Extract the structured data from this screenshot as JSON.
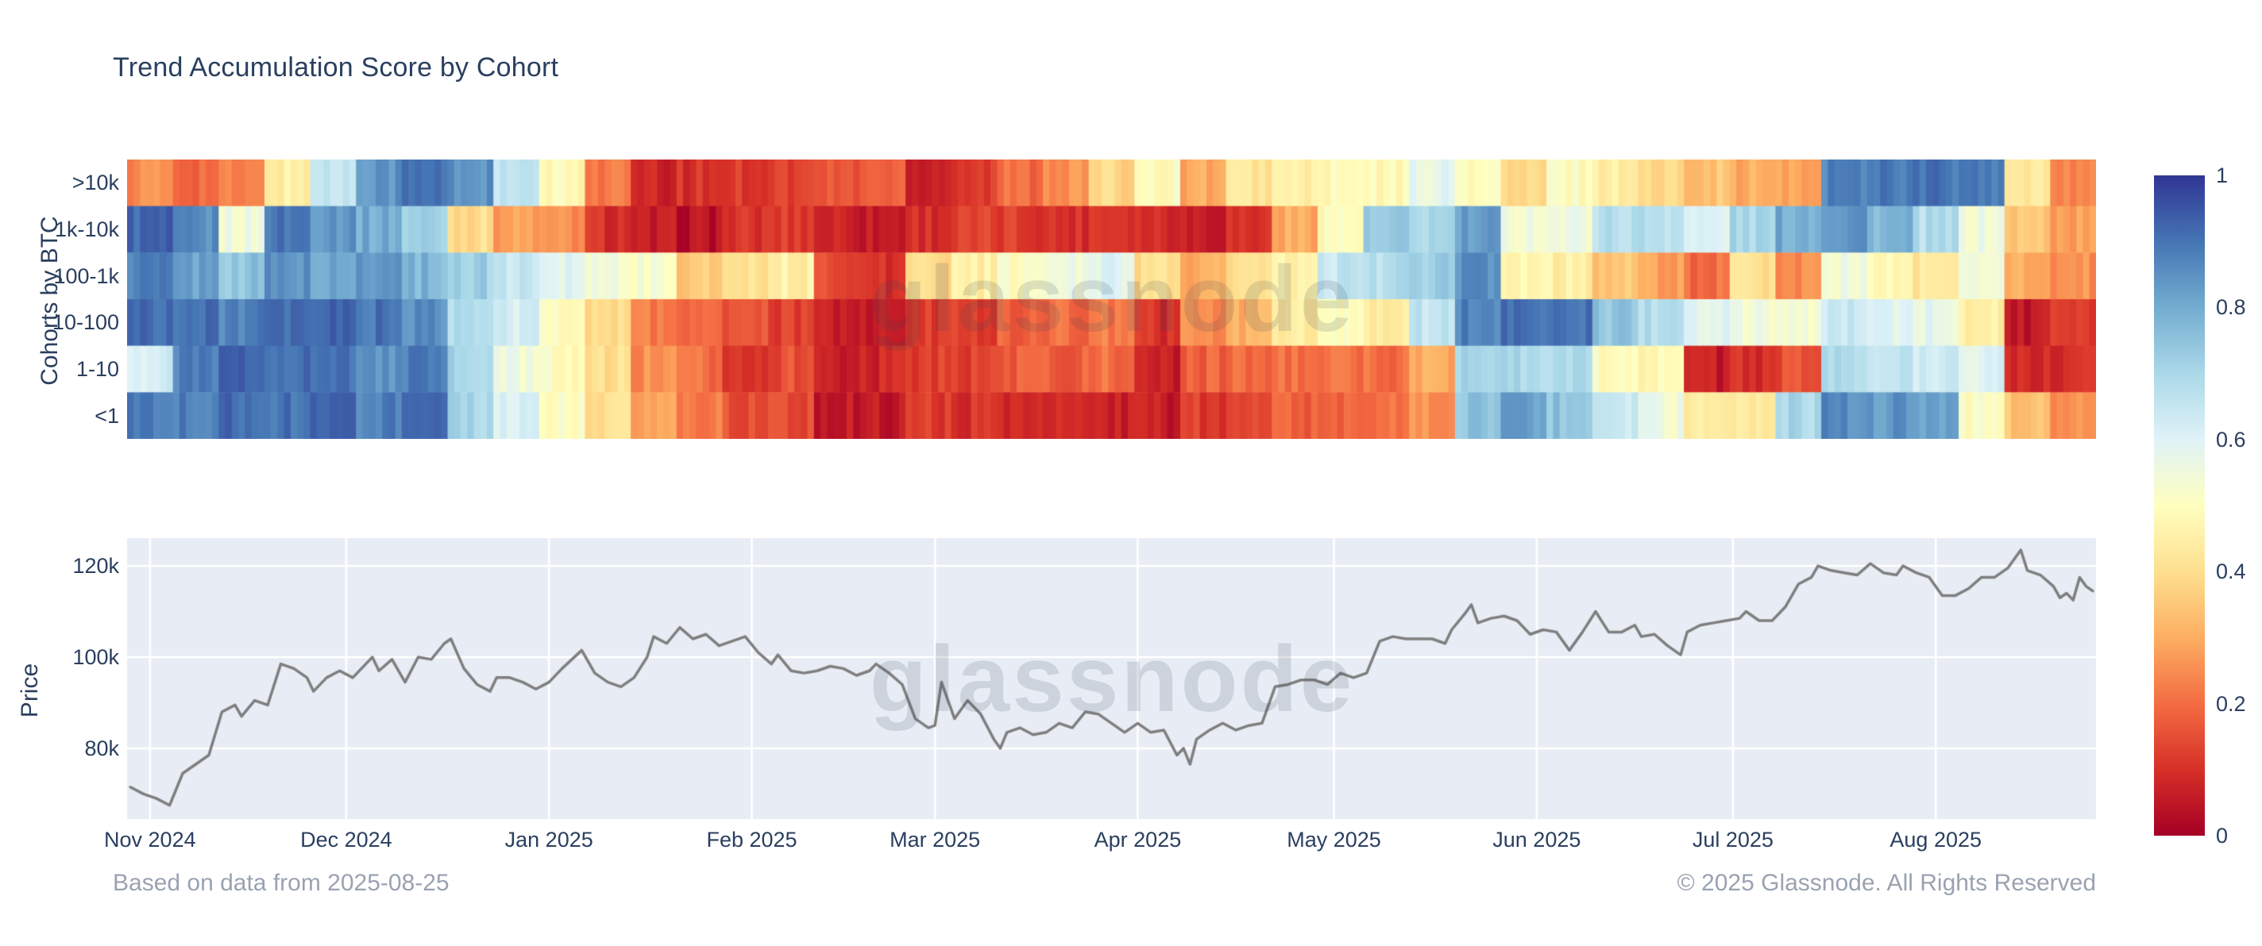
{
  "page": {
    "title": "Trend Accumulation Score by Cohort",
    "watermark": "glassnode",
    "footer_left": "Based on data from 2025-08-25",
    "footer_right": "© 2025 Glassnode. All Rights Reserved"
  },
  "colors": {
    "text": "#2a3f5f",
    "muted_text": "#9aa2b1",
    "plot_background": "#e8edf5",
    "gridline": "#ffffff",
    "price_line": "#7e7e7e",
    "colorscale_name": "RdYlBu",
    "colorscale_anchors": [
      "#a50026",
      "#d73027",
      "#f46d43",
      "#fdae61",
      "#fee090",
      "#ffffbf",
      "#e0f3f8",
      "#abd9e9",
      "#74add1",
      "#4575b4",
      "#313695"
    ]
  },
  "chart_data": [
    {
      "type": "heatmap",
      "title": "Trend Accumulation Score by Cohort",
      "ylabel": "Cohorts by BTC",
      "x_start": "2024-10-29",
      "x_end": "2025-08-25",
      "x_step_days": 7,
      "total_days": 301,
      "zmin": 0,
      "zmax": 1,
      "legend_position": "right-colorbar",
      "colorbar_ticks": [
        "1",
        "0.8",
        "0.6",
        "0.4",
        "0.2",
        "0"
      ],
      "categories_y": [
        ">10k",
        "1k-10k",
        "100-1k",
        "10-100",
        "1-10",
        "<1"
      ],
      "series": [
        {
          "name": ">10k",
          "values": [
            0.25,
            0.2,
            0.22,
            0.45,
            0.65,
            0.85,
            0.9,
            0.85,
            0.65,
            0.48,
            0.22,
            0.07,
            0.1,
            0.12,
            0.13,
            0.16,
            0.18,
            0.08,
            0.12,
            0.2,
            0.26,
            0.38,
            0.5,
            0.3,
            0.42,
            0.45,
            0.48,
            0.48,
            0.58,
            0.5,
            0.38,
            0.5,
            0.45,
            0.38,
            0.35,
            0.3,
            0.28,
            0.88,
            0.9,
            0.9,
            0.88,
            0.42,
            0.25
          ]
        },
        {
          "name": "1k-10k",
          "values": [
            0.92,
            0.85,
            0.55,
            0.9,
            0.85,
            0.8,
            0.72,
            0.4,
            0.28,
            0.25,
            0.1,
            0.05,
            0.04,
            0.1,
            0.12,
            0.08,
            0.06,
            0.1,
            0.12,
            0.12,
            0.1,
            0.12,
            0.1,
            0.07,
            0.1,
            0.3,
            0.5,
            0.72,
            0.7,
            0.82,
            0.55,
            0.55,
            0.68,
            0.68,
            0.6,
            0.7,
            0.8,
            0.85,
            0.78,
            0.68,
            0.55,
            0.35,
            0.28
          ]
        },
        {
          "name": "100-1k",
          "values": [
            0.88,
            0.82,
            0.75,
            0.85,
            0.8,
            0.85,
            0.78,
            0.72,
            0.65,
            0.6,
            0.55,
            0.52,
            0.35,
            0.42,
            0.45,
            0.15,
            0.1,
            0.4,
            0.45,
            0.5,
            0.55,
            0.6,
            0.4,
            0.3,
            0.4,
            0.45,
            0.65,
            0.68,
            0.72,
            0.85,
            0.48,
            0.45,
            0.35,
            0.28,
            0.2,
            0.4,
            0.25,
            0.55,
            0.48,
            0.42,
            0.55,
            0.3,
            0.25
          ]
        },
        {
          "name": "10-100",
          "values": [
            0.92,
            0.9,
            0.88,
            0.9,
            0.92,
            0.9,
            0.85,
            0.68,
            0.62,
            0.5,
            0.4,
            0.22,
            0.2,
            0.15,
            0.12,
            0.07,
            0.05,
            0.12,
            0.13,
            0.18,
            0.2,
            0.22,
            0.1,
            0.25,
            0.3,
            0.45,
            0.48,
            0.45,
            0.65,
            0.88,
            0.92,
            0.9,
            0.75,
            0.68,
            0.6,
            0.55,
            0.52,
            0.65,
            0.6,
            0.58,
            0.45,
            0.05,
            0.1
          ]
        },
        {
          "name": "1-10",
          "values": [
            0.62,
            0.88,
            0.92,
            0.92,
            0.9,
            0.85,
            0.88,
            0.7,
            0.55,
            0.5,
            0.4,
            0.25,
            0.2,
            0.12,
            0.15,
            0.07,
            0.08,
            0.13,
            0.13,
            0.17,
            0.18,
            0.2,
            0.06,
            0.18,
            0.2,
            0.2,
            0.2,
            0.2,
            0.3,
            0.72,
            0.7,
            0.68,
            0.5,
            0.48,
            0.06,
            0.1,
            0.15,
            0.7,
            0.65,
            0.62,
            0.6,
            0.1,
            0.1
          ]
        },
        {
          "name": "<1",
          "values": [
            0.9,
            0.88,
            0.92,
            0.9,
            0.92,
            0.88,
            0.9,
            0.7,
            0.6,
            0.5,
            0.4,
            0.28,
            0.22,
            0.15,
            0.14,
            0.06,
            0.05,
            0.12,
            0.1,
            0.07,
            0.07,
            0.07,
            0.06,
            0.12,
            0.12,
            0.18,
            0.18,
            0.2,
            0.25,
            0.75,
            0.82,
            0.75,
            0.65,
            0.55,
            0.45,
            0.42,
            0.7,
            0.86,
            0.84,
            0.8,
            0.5,
            0.35,
            0.25
          ]
        }
      ]
    },
    {
      "type": "line",
      "title": "",
      "ylabel": "Price",
      "grid": true,
      "ylim": [
        64.5,
        126.1
      ],
      "yticks": [
        {
          "label": "120k",
          "value": 120
        },
        {
          "label": "100k",
          "value": 100
        },
        {
          "label": "80k",
          "value": 80
        }
      ],
      "total_days": 301,
      "x_months": [
        {
          "label": "Nov 2024",
          "day": 3
        },
        {
          "label": "Dec 2024",
          "day": 33
        },
        {
          "label": "Jan 2025",
          "day": 64
        },
        {
          "label": "Feb 2025",
          "day": 95
        },
        {
          "label": "Mar 2025",
          "day": 123
        },
        {
          "label": "Apr 2025",
          "day": 154
        },
        {
          "label": "May 2025",
          "day": 184
        },
        {
          "label": "Jun 2025",
          "day": 215
        },
        {
          "label": "Jul 2025",
          "day": 245
        },
        {
          "label": "Aug 2025",
          "day": 276
        }
      ],
      "unit": "USD thousands",
      "points": [
        [
          0,
          71.5
        ],
        [
          2,
          70
        ],
        [
          4,
          69
        ],
        [
          6,
          67.5
        ],
        [
          8,
          74.5
        ],
        [
          10,
          76.5
        ],
        [
          12,
          78.5
        ],
        [
          14,
          88
        ],
        [
          16,
          89.5
        ],
        [
          17,
          87
        ],
        [
          19,
          90.5
        ],
        [
          21,
          89.5
        ],
        [
          23,
          98.5
        ],
        [
          25,
          97.5
        ],
        [
          27,
          95.5
        ],
        [
          28,
          92.5
        ],
        [
          30,
          95.5
        ],
        [
          32,
          97
        ],
        [
          34,
          95.5
        ],
        [
          36,
          98.5
        ],
        [
          37,
          100
        ],
        [
          38,
          97
        ],
        [
          40,
          99.5
        ],
        [
          42,
          94.5
        ],
        [
          44,
          100
        ],
        [
          46,
          99.5
        ],
        [
          48,
          103
        ],
        [
          49,
          104
        ],
        [
          51,
          97.5
        ],
        [
          53,
          94
        ],
        [
          55,
          92.5
        ],
        [
          56,
          95.5
        ],
        [
          58,
          95.5
        ],
        [
          60,
          94.5
        ],
        [
          62,
          93
        ],
        [
          64,
          94.5
        ],
        [
          66,
          97.5
        ],
        [
          69,
          101.5
        ],
        [
          71,
          96.5
        ],
        [
          73,
          94.5
        ],
        [
          75,
          93.5
        ],
        [
          77,
          95.5
        ],
        [
          79,
          100
        ],
        [
          80,
          104.5
        ],
        [
          82,
          103
        ],
        [
          84,
          106.5
        ],
        [
          86,
          104
        ],
        [
          88,
          105
        ],
        [
          90,
          102.5
        ],
        [
          92,
          103.5
        ],
        [
          94,
          104.5
        ],
        [
          96,
          101
        ],
        [
          98,
          98.5
        ],
        [
          99,
          100.5
        ],
        [
          101,
          97
        ],
        [
          103,
          96.5
        ],
        [
          105,
          97
        ],
        [
          107,
          98
        ],
        [
          109,
          97.5
        ],
        [
          111,
          96
        ],
        [
          113,
          97
        ],
        [
          114,
          98.5
        ],
        [
          116,
          96.5
        ],
        [
          118,
          94
        ],
        [
          120,
          86.5
        ],
        [
          122,
          84.5
        ],
        [
          123,
          85
        ],
        [
          124,
          94.5
        ],
        [
          126,
          86.5
        ],
        [
          128,
          90.5
        ],
        [
          130,
          87.5
        ],
        [
          132,
          82
        ],
        [
          133,
          80
        ],
        [
          134,
          83.5
        ],
        [
          136,
          84.5
        ],
        [
          138,
          83
        ],
        [
          140,
          83.5
        ],
        [
          142,
          85.5
        ],
        [
          144,
          84.5
        ],
        [
          146,
          88
        ],
        [
          148,
          87.5
        ],
        [
          150,
          85.5
        ],
        [
          152,
          83.5
        ],
        [
          154,
          85.5
        ],
        [
          156,
          83.5
        ],
        [
          158,
          84
        ],
        [
          160,
          78.5
        ],
        [
          161,
          80
        ],
        [
          162,
          76.5
        ],
        [
          163,
          82
        ],
        [
          165,
          84
        ],
        [
          167,
          85.5
        ],
        [
          169,
          84
        ],
        [
          171,
          85
        ],
        [
          173,
          85.5
        ],
        [
          175,
          93.5
        ],
        [
          177,
          94
        ],
        [
          179,
          95
        ],
        [
          181,
          95
        ],
        [
          183,
          94
        ],
        [
          185,
          96.5
        ],
        [
          187,
          95.5
        ],
        [
          189,
          96.5
        ],
        [
          191,
          103.5
        ],
        [
          193,
          104.5
        ],
        [
          195,
          104
        ],
        [
          197,
          104
        ],
        [
          199,
          104
        ],
        [
          201,
          103
        ],
        [
          202,
          106
        ],
        [
          204,
          109.5
        ],
        [
          205,
          111.5
        ],
        [
          206,
          107.5
        ],
        [
          208,
          108.5
        ],
        [
          210,
          109
        ],
        [
          212,
          108
        ],
        [
          214,
          105
        ],
        [
          216,
          106
        ],
        [
          218,
          105.5
        ],
        [
          220,
          101.5
        ],
        [
          222,
          105.5
        ],
        [
          224,
          110
        ],
        [
          226,
          105.5
        ],
        [
          228,
          105.5
        ],
        [
          230,
          107
        ],
        [
          231,
          104.5
        ],
        [
          233,
          105
        ],
        [
          235,
          102.5
        ],
        [
          237,
          100.5
        ],
        [
          238,
          105.5
        ],
        [
          240,
          107
        ],
        [
          242,
          107.5
        ],
        [
          244,
          108
        ],
        [
          246,
          108.5
        ],
        [
          247,
          110
        ],
        [
          249,
          108
        ],
        [
          251,
          108
        ],
        [
          253,
          111
        ],
        [
          255,
          116
        ],
        [
          257,
          117.5
        ],
        [
          258,
          120
        ],
        [
          260,
          119
        ],
        [
          262,
          118.5
        ],
        [
          264,
          118
        ],
        [
          266,
          120.5
        ],
        [
          268,
          118.5
        ],
        [
          270,
          118
        ],
        [
          271,
          120
        ],
        [
          273,
          118.5
        ],
        [
          275,
          117.5
        ],
        [
          277,
          113.5
        ],
        [
          279,
          113.5
        ],
        [
          281,
          115
        ],
        [
          283,
          117.5
        ],
        [
          285,
          117.5
        ],
        [
          287,
          119.5
        ],
        [
          289,
          123.5
        ],
        [
          290,
          119
        ],
        [
          292,
          118
        ],
        [
          294,
          115.5
        ],
        [
          295,
          113
        ],
        [
          296,
          114
        ],
        [
          297,
          112.5
        ],
        [
          298,
          117.5
        ],
        [
          299,
          115.5
        ],
        [
          300,
          114.5
        ]
      ]
    }
  ]
}
